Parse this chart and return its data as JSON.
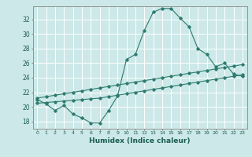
{
  "xlabel": "Humidex (Indice chaleur)",
  "bg_color": "#cce8e8",
  "grid_color": "#ffffff",
  "line_color": "#2d7b6e",
  "xlim": [
    -0.5,
    23.5
  ],
  "ylim": [
    17.0,
    33.8
  ],
  "yticks": [
    18,
    20,
    22,
    24,
    26,
    28,
    30,
    32
  ],
  "xticks": [
    0,
    1,
    2,
    3,
    4,
    5,
    6,
    7,
    8,
    9,
    10,
    11,
    12,
    13,
    14,
    15,
    16,
    17,
    18,
    19,
    20,
    21,
    22,
    23
  ],
  "series1_y": [
    21.0,
    20.4,
    19.5,
    20.2,
    19.0,
    18.5,
    17.8,
    17.8,
    19.5,
    21.5,
    26.5,
    27.2,
    30.5,
    33.0,
    33.5,
    33.5,
    32.2,
    31.0,
    28.0,
    27.2,
    25.5,
    26.0,
    24.5,
    24.2
  ],
  "series2_y": [
    21.2,
    21.4,
    21.6,
    21.8,
    22.0,
    22.2,
    22.4,
    22.6,
    22.8,
    23.0,
    23.2,
    23.4,
    23.6,
    23.8,
    24.0,
    24.2,
    24.4,
    24.6,
    24.8,
    25.0,
    25.2,
    25.4,
    25.6,
    25.8
  ],
  "series3_y": [
    20.5,
    20.6,
    20.7,
    20.8,
    20.9,
    21.0,
    21.1,
    21.2,
    21.4,
    21.6,
    21.8,
    22.0,
    22.2,
    22.4,
    22.6,
    22.8,
    23.0,
    23.2,
    23.4,
    23.6,
    23.8,
    24.0,
    24.2,
    24.4
  ]
}
